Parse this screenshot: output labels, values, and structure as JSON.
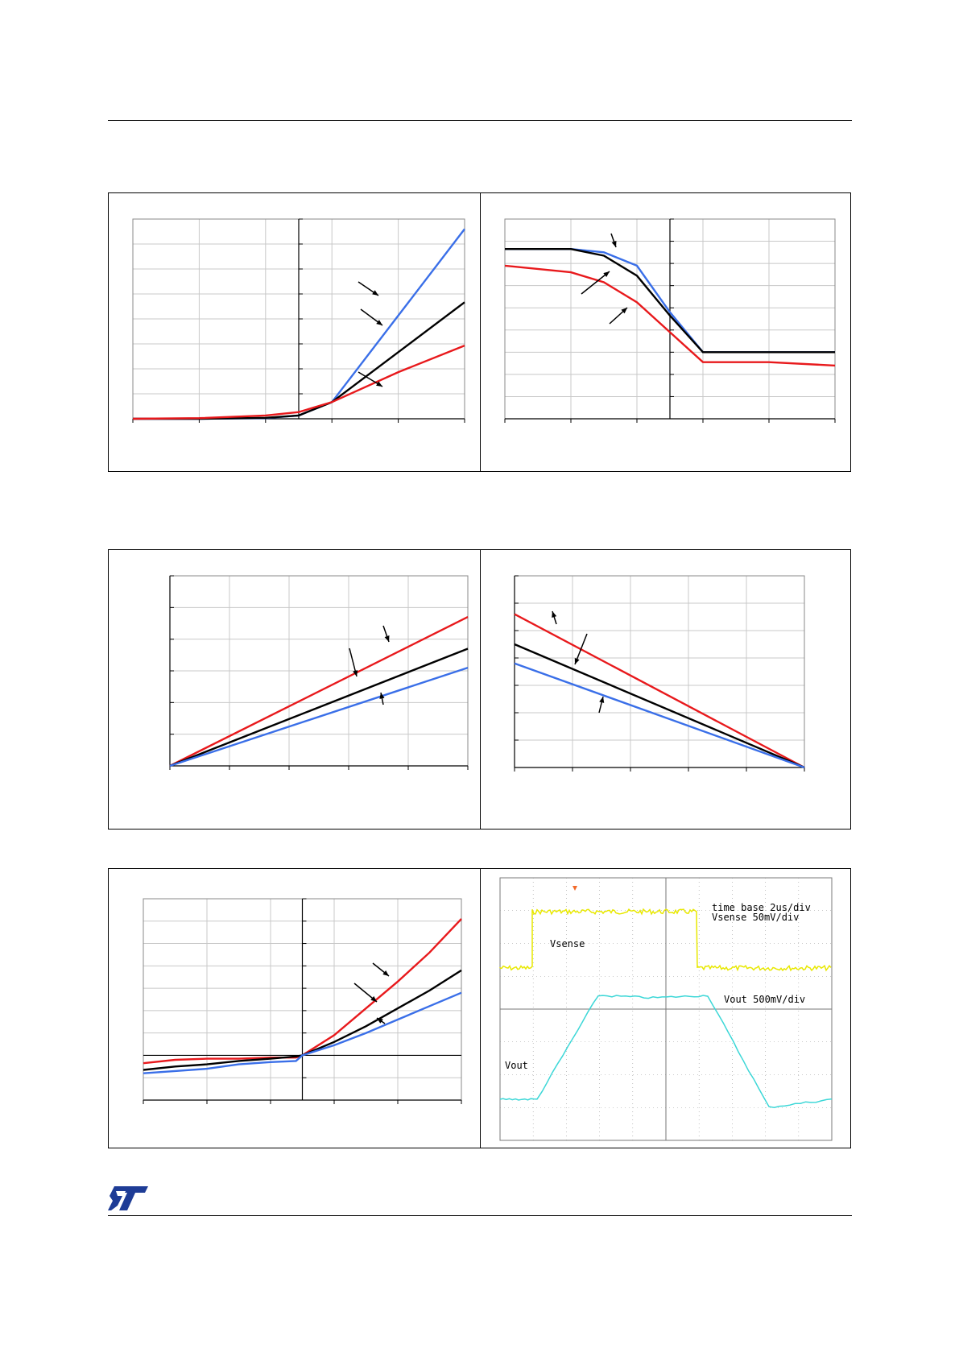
{
  "colors": {
    "blue": "#3a6fe8",
    "black": "#000000",
    "red": "#e8191c",
    "grid": "#c8c8c8",
    "scope_bg": "#ffffff",
    "scope_grid": "#9a9a9a",
    "scope_yellow": "#e8e800",
    "scope_cyan": "#3cd7d7"
  },
  "charts": [
    {
      "id": "chart-1",
      "type": "line",
      "description_hint": "three curves diverging after the center axis",
      "series": [
        {
          "color": "blue",
          "x": [
            0,
            1,
            2,
            2.5,
            3,
            4,
            5
          ],
          "y": [
            0,
            0,
            0.02,
            0.1,
            0.5,
            3.1,
            5.7
          ]
        },
        {
          "color": "black",
          "x": [
            0,
            1,
            2,
            2.5,
            3,
            4,
            5
          ],
          "y": [
            0,
            0,
            0.03,
            0.1,
            0.5,
            2.0,
            3.5
          ]
        },
        {
          "color": "red",
          "x": [
            0,
            1,
            2,
            2.5,
            3,
            4,
            5
          ],
          "y": [
            0,
            0.02,
            0.1,
            0.2,
            0.5,
            1.4,
            2.2
          ]
        }
      ],
      "xlim": [
        0,
        5
      ],
      "ylim": [
        0,
        6
      ],
      "xgrid": 5,
      "ygrid": 8
    },
    {
      "id": "chart-2",
      "type": "line",
      "series": [
        {
          "color": "blue",
          "x": [
            0,
            1,
            1.5,
            2,
            2.5,
            3,
            4,
            5
          ],
          "y": [
            5.1,
            5.1,
            5.0,
            4.6,
            3.2,
            2.0,
            2.0,
            2.0
          ]
        },
        {
          "color": "black",
          "x": [
            0,
            1,
            1.5,
            2,
            2.5,
            3,
            4,
            5
          ],
          "y": [
            5.1,
            5.1,
            4.9,
            4.3,
            3.1,
            2.0,
            2.0,
            2.0
          ]
        },
        {
          "color": "red",
          "x": [
            0,
            1,
            1.5,
            2,
            2.5,
            3,
            4,
            5
          ],
          "y": [
            4.6,
            4.4,
            4.1,
            3.5,
            2.6,
            1.7,
            1.7,
            1.6
          ]
        }
      ],
      "xlim": [
        0,
        5
      ],
      "ylim": [
        0,
        6
      ],
      "xgrid": 5,
      "ygrid": 9
    },
    {
      "id": "chart-3",
      "type": "line",
      "series": [
        {
          "color": "red",
          "x": [
            0,
            5
          ],
          "y": [
            0,
            4.7
          ]
        },
        {
          "color": "black",
          "x": [
            0,
            5
          ],
          "y": [
            0,
            3.7
          ]
        },
        {
          "color": "blue",
          "x": [
            0,
            5
          ],
          "y": [
            0,
            3.1
          ]
        }
      ],
      "xlim": [
        0,
        5
      ],
      "ylim": [
        0,
        6
      ],
      "xgrid": 5,
      "ygrid": 6
    },
    {
      "id": "chart-4",
      "type": "line",
      "series": [
        {
          "color": "red",
          "x": [
            0,
            5
          ],
          "y": [
            5.6,
            0
          ]
        },
        {
          "color": "black",
          "x": [
            0,
            5
          ],
          "y": [
            4.5,
            0
          ]
        },
        {
          "color": "blue",
          "x": [
            0,
            5
          ],
          "y": [
            3.8,
            0
          ]
        }
      ],
      "xlim": [
        0,
        5
      ],
      "ylim": [
        0,
        7
      ],
      "xgrid": 5,
      "ygrid": 7
    },
    {
      "id": "chart-5",
      "type": "line",
      "series": [
        {
          "color": "red",
          "x": [
            0,
            0.5,
            1,
            1.5,
            2,
            2.4,
            2.5,
            3,
            3.5,
            4,
            4.5,
            5
          ],
          "y": [
            -0.35,
            -0.2,
            -0.15,
            -0.15,
            -0.1,
            -0.1,
            0,
            0.9,
            2.1,
            3.3,
            4.6,
            6.1
          ]
        },
        {
          "color": "black",
          "x": [
            0,
            0.5,
            1,
            1.5,
            2,
            2.4,
            2.5,
            3,
            3.5,
            4,
            4.5,
            5
          ],
          "y": [
            -0.65,
            -0.5,
            -0.4,
            -0.25,
            -0.15,
            -0.05,
            0,
            0.6,
            1.3,
            2.1,
            2.9,
            3.8
          ]
        },
        {
          "color": "blue",
          "x": [
            0,
            0.5,
            1,
            1.5,
            2,
            2.4,
            2.5,
            3,
            3.5,
            4,
            4.5,
            5
          ],
          "y": [
            -0.8,
            -0.7,
            -0.6,
            -0.4,
            -0.3,
            -0.25,
            0,
            0.45,
            1.0,
            1.6,
            2.2,
            2.8
          ]
        }
      ],
      "xlim": [
        0,
        5
      ],
      "ylim": [
        -2,
        7
      ],
      "xgrid": 5,
      "ygrid": 9
    }
  ],
  "scope": {
    "line1": "time base 2us/div",
    "line2": "Vsense 50mV/div",
    "vsense_label": "Vsense",
    "vout_label": "Vout 500mV/div",
    "vout_trace_label": "Vout"
  },
  "logo": {
    "text": "ST"
  }
}
